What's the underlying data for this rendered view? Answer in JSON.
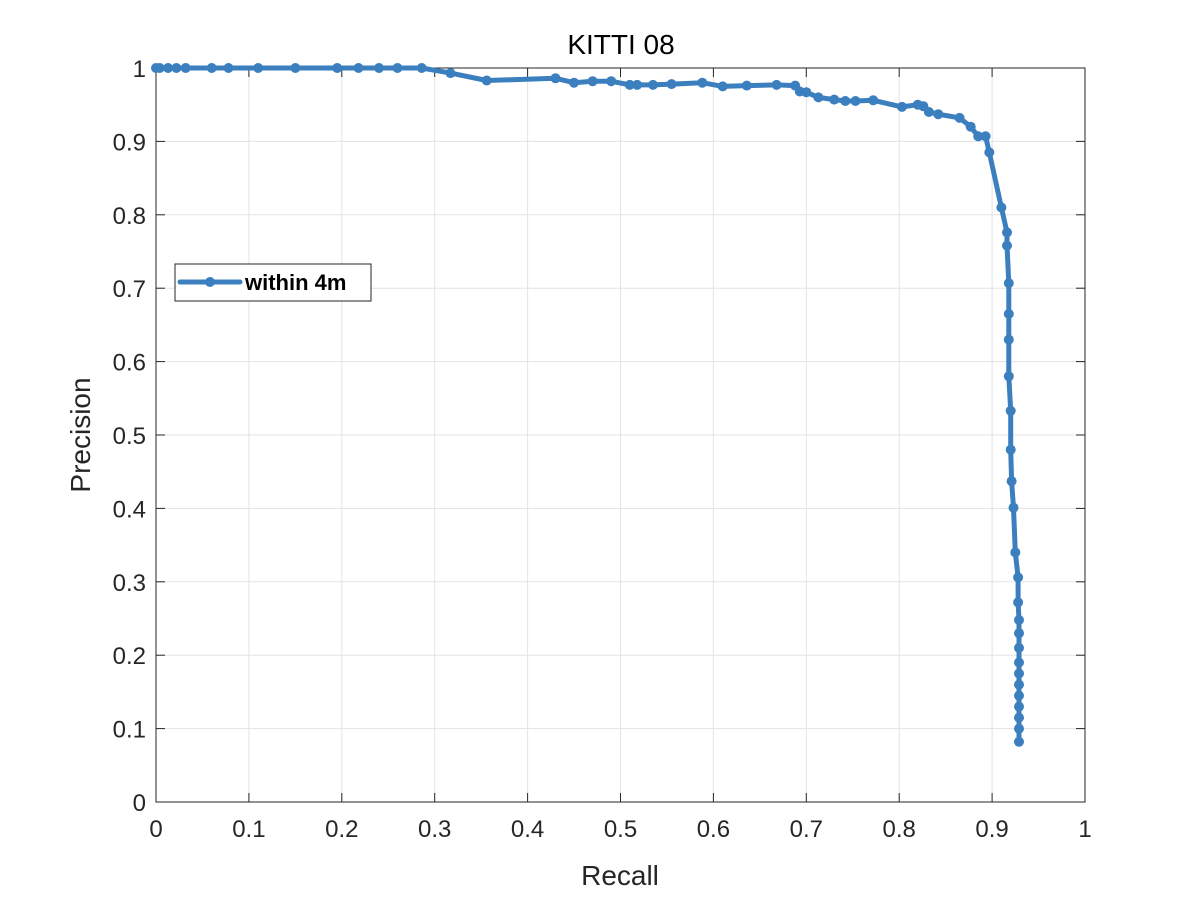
{
  "chart_data": {
    "type": "line",
    "title": "KITTI 08",
    "xlabel": "Recall",
    "ylabel": "Precision",
    "xlim": [
      0,
      1
    ],
    "ylim": [
      0,
      1
    ],
    "xticks": [
      "0",
      "0.1",
      "0.2",
      "0.3",
      "0.4",
      "0.5",
      "0.6",
      "0.7",
      "0.8",
      "0.9",
      "1"
    ],
    "yticks": [
      "0",
      "0.1",
      "0.2",
      "0.3",
      "0.4",
      "0.5",
      "0.6",
      "0.7",
      "0.8",
      "0.9",
      "1"
    ],
    "grid": true,
    "legend_position": "center-left",
    "colors": {
      "series": "#3B7FBF",
      "axis": "#262626",
      "grid": "#E3E3E3"
    },
    "series": [
      {
        "name": "within 4m",
        "marker": "dot",
        "x": [
          0.0,
          0.004,
          0.013,
          0.022,
          0.032,
          0.06,
          0.078,
          0.11,
          0.15,
          0.195,
          0.218,
          0.24,
          0.26,
          0.286,
          0.317,
          0.356,
          0.43,
          0.45,
          0.47,
          0.49,
          0.51,
          0.518,
          0.535,
          0.555,
          0.588,
          0.61,
          0.636,
          0.668,
          0.688,
          0.693,
          0.7,
          0.713,
          0.73,
          0.742,
          0.753,
          0.772,
          0.803,
          0.82,
          0.826,
          0.832,
          0.842,
          0.865,
          0.877,
          0.885,
          0.893,
          0.897,
          0.91,
          0.916,
          0.916,
          0.918,
          0.918,
          0.918,
          0.918,
          0.92,
          0.92,
          0.921,
          0.923,
          0.925,
          0.928,
          0.928,
          0.929,
          0.929,
          0.929,
          0.929,
          0.929,
          0.929,
          0.929,
          0.929,
          0.929,
          0.929,
          0.929
        ],
        "y": [
          1.0,
          1.0,
          1.0,
          1.0,
          1.0,
          1.0,
          1.0,
          1.0,
          1.0,
          1.0,
          1.0,
          1.0,
          1.0,
          1.0,
          0.993,
          0.983,
          0.986,
          0.98,
          0.982,
          0.982,
          0.977,
          0.977,
          0.977,
          0.978,
          0.98,
          0.975,
          0.976,
          0.977,
          0.976,
          0.968,
          0.967,
          0.96,
          0.957,
          0.955,
          0.955,
          0.956,
          0.947,
          0.95,
          0.948,
          0.94,
          0.937,
          0.932,
          0.92,
          0.907,
          0.907,
          0.885,
          0.81,
          0.776,
          0.758,
          0.707,
          0.665,
          0.63,
          0.58,
          0.533,
          0.48,
          0.437,
          0.401,
          0.34,
          0.306,
          0.272,
          0.248,
          0.23,
          0.21,
          0.19,
          0.175,
          0.16,
          0.145,
          0.13,
          0.115,
          0.1,
          0.082
        ]
      }
    ]
  }
}
